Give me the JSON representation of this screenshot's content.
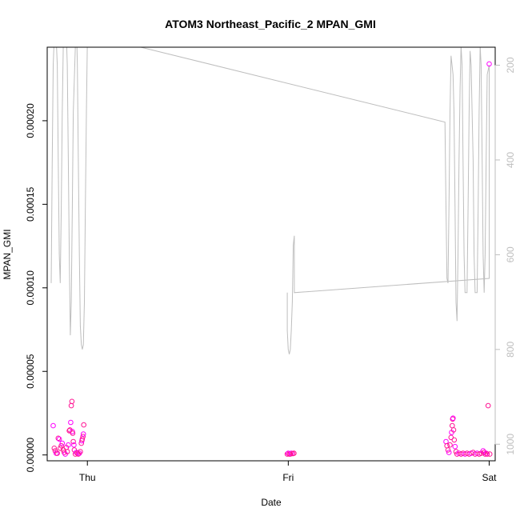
{
  "chart_data": {
    "type": "scatter",
    "title": "ATOM3 Northeast_Pacific_2 MPAN_GMI",
    "xlabel": "Date",
    "ylabel": "MPAN_GMI",
    "x_ticks": [
      "Thu",
      "Fri",
      "Sat"
    ],
    "y_ticks": [
      "0.00000",
      "0.00005",
      "0.00010",
      "0.00015",
      "0.00020"
    ],
    "right_ticks": [
      "200",
      "400",
      "600",
      "800",
      "1000"
    ],
    "xlim_days": [
      -0.2,
      2.03
    ],
    "ylim": [
      -3.5e-06,
      0.000244
    ],
    "right_lim": [
      1035,
      162
    ],
    "grid": false,
    "colors": {
      "points": "#ff1493",
      "points_alt": "#ff00ff",
      "altitude_line": "#bebebe",
      "axis": "#000000"
    },
    "series": [
      {
        "kind": "points",
        "points": [
          [
            -0.17,
            1.75e-05
          ],
          [
            -0.165,
            4e-06
          ],
          [
            -0.16,
            2.5e-06
          ],
          [
            -0.155,
            1e-06
          ],
          [
            -0.15,
            1e-06
          ],
          [
            -0.145,
            1e-05
          ],
          [
            -0.14,
            9.5e-06
          ],
          [
            -0.135,
            4e-06
          ],
          [
            -0.13,
            5.5e-06
          ],
          [
            -0.125,
            7e-06
          ],
          [
            -0.12,
            3e-06
          ],
          [
            -0.115,
            1.5e-06
          ],
          [
            -0.11,
            5e-07
          ],
          [
            -0.105,
            4.5e-06
          ],
          [
            -0.1,
            2e-06
          ],
          [
            -0.095,
            6e-06
          ],
          [
            -0.09,
            1.45e-05
          ],
          [
            -0.087,
            1.5e-05
          ],
          [
            -0.083,
            1.95e-05
          ],
          [
            -0.08,
            2.95e-05
          ],
          [
            -0.077,
            3.2e-05
          ],
          [
            -0.075,
            1.4e-05
          ],
          [
            -0.073,
            1.3e-05
          ],
          [
            -0.07,
            8e-06
          ],
          [
            -0.067,
            6e-06
          ],
          [
            -0.065,
            3e-06
          ],
          [
            -0.06,
            5e-07
          ],
          [
            -0.055,
            1.5e-06
          ],
          [
            -0.05,
            1e-06
          ],
          [
            -0.045,
            5e-07
          ],
          [
            -0.04,
            1e-06
          ],
          [
            -0.035,
            2e-06
          ],
          [
            -0.03,
            7e-06
          ],
          [
            -0.027,
            8.5e-06
          ],
          [
            -0.025,
            9.5e-06
          ],
          [
            -0.022,
            1.1e-05
          ],
          [
            -0.02,
            1.25e-05
          ],
          [
            -0.018,
            1.8e-05
          ],
          [
            0.995,
            5e-07
          ],
          [
            1.0,
            1e-06
          ],
          [
            1.005,
            5e-07
          ],
          [
            1.01,
            5e-07
          ],
          [
            1.015,
            1e-06
          ],
          [
            1.022,
            8e-07
          ],
          [
            1.028,
            1e-06
          ],
          [
            1.785,
            8e-06
          ],
          [
            1.79,
            5.5e-06
          ],
          [
            1.795,
            3e-06
          ],
          [
            1.8,
            1.5e-06
          ],
          [
            1.805,
            6e-06
          ],
          [
            1.81,
            1.05e-05
          ],
          [
            1.813,
            1.35e-05
          ],
          [
            1.816,
            1.75e-05
          ],
          [
            1.818,
            2.15e-05
          ],
          [
            1.82,
            2.2e-05
          ],
          [
            1.823,
            1.5e-05
          ],
          [
            1.826,
            9e-06
          ],
          [
            1.83,
            5e-06
          ],
          [
            1.835,
            2e-06
          ],
          [
            1.84,
            5e-07
          ],
          [
            1.85,
            1e-06
          ],
          [
            1.86,
            5e-07
          ],
          [
            1.87,
            1e-06
          ],
          [
            1.88,
            5e-07
          ],
          [
            1.89,
            1e-06
          ],
          [
            1.9,
            5e-07
          ],
          [
            1.91,
            1e-06
          ],
          [
            1.92,
            1.5e-06
          ],
          [
            1.93,
            5e-07
          ],
          [
            1.94,
            1e-06
          ],
          [
            1.95,
            5e-07
          ],
          [
            1.96,
            1e-06
          ],
          [
            1.97,
            2.5e-06
          ],
          [
            1.975,
            1.5e-06
          ],
          [
            1.98,
            5e-07
          ],
          [
            1.985,
            1e-06
          ],
          [
            1.99,
            5e-07
          ],
          [
            1.995,
            2.95e-05
          ],
          [
            2.0,
            0.000234
          ],
          [
            2.003,
            5e-07
          ]
        ]
      },
      {
        "kind": "altitude_line",
        "axis": "right",
        "points": [
          [
            -0.18,
            660
          ],
          [
            -0.175,
            400
          ],
          [
            -0.17,
            200
          ],
          [
            -0.16,
            90
          ],
          [
            -0.15,
            200
          ],
          [
            -0.145,
            400
          ],
          [
            -0.14,
            600
          ],
          [
            -0.135,
            660
          ],
          [
            -0.13,
            500
          ],
          [
            -0.125,
            300
          ],
          [
            -0.12,
            160
          ],
          [
            -0.11,
            60
          ],
          [
            -0.1,
            200
          ],
          [
            -0.095,
            400
          ],
          [
            -0.09,
            600
          ],
          [
            -0.085,
            770
          ],
          [
            -0.08,
            700
          ],
          [
            -0.075,
            500
          ],
          [
            -0.07,
            300
          ],
          [
            -0.06,
            160
          ],
          [
            -0.055,
            100
          ],
          [
            -0.05,
            200
          ],
          [
            -0.045,
            400
          ],
          [
            -0.04,
            600
          ],
          [
            -0.035,
            750
          ],
          [
            -0.03,
            790
          ],
          [
            -0.025,
            800
          ],
          [
            -0.02,
            790
          ],
          [
            -0.015,
            700
          ],
          [
            -0.01,
            500
          ],
          [
            -0.005,
            300
          ],
          [
            0.0,
            150
          ],
          [
            0.2,
            155
          ],
          [
            1.78,
            320
          ],
          [
            1.785,
            500
          ],
          [
            1.79,
            650
          ],
          [
            1.795,
            660
          ],
          [
            1.8,
            500
          ],
          [
            1.805,
            300
          ],
          [
            1.81,
            180
          ],
          [
            1.82,
            220
          ],
          [
            1.825,
            300
          ],
          [
            1.83,
            500
          ],
          [
            1.835,
            700
          ],
          [
            1.84,
            740
          ],
          [
            1.845,
            600
          ],
          [
            1.85,
            400
          ],
          [
            1.855,
            250
          ],
          [
            1.86,
            160
          ],
          [
            1.865,
            200
          ],
          [
            1.87,
            400
          ],
          [
            1.875,
            600
          ],
          [
            1.88,
            680
          ],
          [
            1.89,
            680
          ],
          [
            1.895,
            500
          ],
          [
            1.9,
            300
          ],
          [
            1.905,
            170
          ],
          [
            1.91,
            200
          ],
          [
            1.92,
            400
          ],
          [
            1.925,
            600
          ],
          [
            1.93,
            680
          ],
          [
            1.94,
            680
          ],
          [
            1.945,
            500
          ],
          [
            1.95,
            300
          ],
          [
            1.955,
            160
          ],
          [
            1.96,
            200
          ],
          [
            1.965,
            400
          ],
          [
            1.97,
            600
          ],
          [
            1.975,
            680
          ],
          [
            1.98,
            600
          ],
          [
            1.985,
            400
          ],
          [
            1.99,
            220
          ],
          [
            2.0,
            200
          ],
          [
            2.0,
            650
          ],
          [
            1.03,
            680
          ],
          [
            1.03,
            560
          ],
          [
            1.025,
            580
          ],
          [
            1.02,
            700
          ],
          [
            1.015,
            760
          ],
          [
            1.01,
            800
          ],
          [
            1.005,
            810
          ],
          [
            1.0,
            800
          ],
          [
            0.995,
            760
          ],
          [
            0.995,
            680
          ]
        ]
      }
    ]
  }
}
